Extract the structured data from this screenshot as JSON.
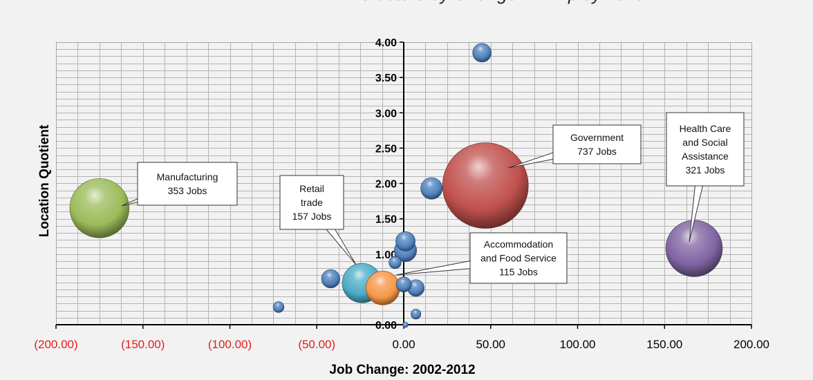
{
  "chart_data": {
    "type": "scatter",
    "subtype": "bubble",
    "title": "Clusters by Change in Employment",
    "xlabel": "Job Change: 2002-2012",
    "ylabel": "Location Quotient",
    "xlim": [
      -200,
      200
    ],
    "ylim": [
      0,
      4
    ],
    "x_ticks": [
      "(200.00)",
      "(150.00)",
      "(100.00)",
      "(50.00)",
      "0.00",
      "50.00",
      "100.00",
      "150.00",
      "200.00"
    ],
    "y_ticks": [
      "0.00",
      "0.50",
      "1.00",
      "1.50",
      "2.00",
      "2.50",
      "3.00",
      "3.50",
      "4.00"
    ],
    "x_tick_values": [
      -200,
      -150,
      -100,
      -50,
      0,
      50,
      100,
      150,
      200
    ],
    "y_tick_values": [
      0,
      0.5,
      1,
      1.5,
      2,
      2.5,
      3,
      3.5,
      4
    ],
    "negative_tick_color": "#e0201b",
    "grid": true,
    "points": [
      {
        "label": "Manufacturing",
        "x": -175,
        "y": 1.65,
        "jobs": 353,
        "color": "#9bbb59"
      },
      {
        "label": "Government",
        "x": 47,
        "y": 1.97,
        "jobs": 737,
        "color": "#c0504d"
      },
      {
        "label": "Health Care and Social Assistance",
        "x": 167,
        "y": 1.08,
        "jobs": 321,
        "color": "#8064a2"
      },
      {
        "label": "Retail trade",
        "x": -24,
        "y": 0.59,
        "jobs": 157,
        "color": "#4bacc6"
      },
      {
        "label": "Accommodation and Food Service",
        "x": -12,
        "y": 0.52,
        "jobs": 115,
        "color": "#f79646"
      },
      {
        "label": "",
        "x": 45,
        "y": 3.85,
        "jobs": 35,
        "color": "#4f81bd"
      },
      {
        "label": "",
        "x": 16,
        "y": 1.93,
        "jobs": 47,
        "color": "#4f81bd"
      },
      {
        "label": "",
        "x": 1,
        "y": 1.18,
        "jobs": 38,
        "color": "#4f81bd"
      },
      {
        "label": "",
        "x": 1,
        "y": 1.05,
        "jobs": 50,
        "color": "#4f81bd"
      },
      {
        "label": "",
        "x": -5,
        "y": 0.88,
        "jobs": 15,
        "color": "#4f81bd"
      },
      {
        "label": "",
        "x": -42,
        "y": 0.65,
        "jobs": 34,
        "color": "#4f81bd"
      },
      {
        "label": "",
        "x": 0,
        "y": 0.57,
        "jobs": 23,
        "color": "#4f81bd"
      },
      {
        "label": "",
        "x": 7,
        "y": 0.52,
        "jobs": 28,
        "color": "#4f81bd"
      },
      {
        "label": "",
        "x": -72,
        "y": 0.25,
        "jobs": 12,
        "color": "#4f81bd"
      },
      {
        "label": "",
        "x": 7,
        "y": 0.15,
        "jobs": 10,
        "color": "#4f81bd"
      },
      {
        "label": "",
        "x": 1,
        "y": 0.0,
        "jobs": 2,
        "color": "#4f81bd"
      }
    ],
    "callouts": [
      {
        "lines": [
          "Manufacturing",
          "353 Jobs"
        ],
        "target": 0
      },
      {
        "lines": [
          "Government",
          "737 Jobs"
        ],
        "target": 1
      },
      {
        "lines": [
          "Health Care",
          "and Social",
          "Assistance",
          "321 Jobs"
        ],
        "target": 2
      },
      {
        "lines": [
          "Retail",
          "trade",
          "157 Jobs"
        ],
        "target": 3
      },
      {
        "lines": [
          "Accommodation",
          "and Food Service",
          "115 Jobs"
        ],
        "target": 4
      }
    ]
  }
}
